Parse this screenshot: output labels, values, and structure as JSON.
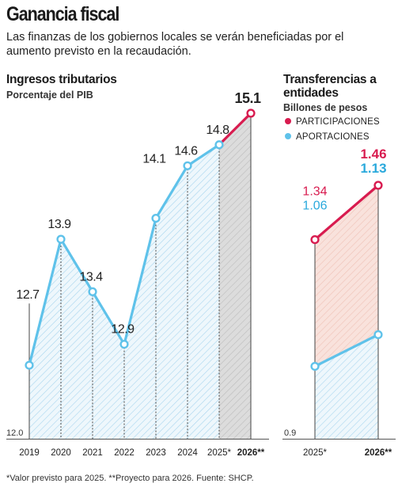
{
  "header": {
    "title": "Ganancia fiscal",
    "subtitle": "Las finanzas de los gobiernos locales se verán beneficiadas por el aumento previsto en la recaudación."
  },
  "footnote": "*Valor previsto para 2025. **Proyecto para 2026. Fuente: SHCP.",
  "colors": {
    "blue": "#5fc2ea",
    "red": "#d81b4f",
    "pink_fill": "#f8ddd7",
    "grey_fill": "#dcdcdc"
  },
  "chart_data": [
    {
      "type": "line",
      "title": "Ingresos tributarios",
      "subtitle": "Porcentaje del PIB",
      "categories": [
        "2019",
        "2020",
        "2021",
        "2022",
        "2023",
        "2024",
        "2025*",
        "2026**"
      ],
      "values": [
        12.7,
        13.9,
        13.4,
        12.9,
        14.1,
        14.6,
        14.8,
        15.1
      ],
      "value_labels": [
        "12.7",
        "13.9",
        "13.4",
        "12.9",
        "14.1",
        "14.6",
        "14.8",
        "15.1"
      ],
      "baseline_label": "12.0",
      "ylim": [
        12.0,
        15.1
      ],
      "grid": false
    },
    {
      "type": "line",
      "title": "Transferencias a entidades",
      "subtitle": "Billones de pesos",
      "categories": [
        "2025*",
        "2026**"
      ],
      "series": [
        {
          "name": "PARTICIPACIONES",
          "values": [
            1.34,
            1.46
          ],
          "value_labels": [
            "1.34",
            "1.46"
          ]
        },
        {
          "name": "APORTACIONES",
          "values": [
            1.06,
            1.13
          ],
          "value_labels": [
            "1.06",
            "1.13"
          ]
        }
      ],
      "baseline_label": "0.9",
      "ylim": [
        0.9,
        1.46
      ],
      "legend": "top",
      "grid": false
    }
  ]
}
